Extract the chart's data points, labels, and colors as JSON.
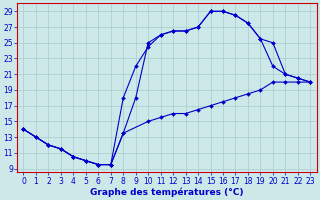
{
  "xlabel": "Graphe des températures (°C)",
  "bg_color": "#cde8e8",
  "line_color": "#0000cc",
  "grid_color": "#aacccc",
  "spine_color": "#cc0000",
  "xlim": [
    -0.5,
    23.5
  ],
  "ylim": [
    8.5,
    30
  ],
  "xticks": [
    0,
    1,
    2,
    3,
    4,
    5,
    6,
    7,
    8,
    9,
    10,
    11,
    12,
    13,
    14,
    15,
    16,
    17,
    18,
    19,
    20,
    21,
    22,
    23
  ],
  "yticks": [
    9,
    11,
    13,
    15,
    17,
    19,
    21,
    23,
    25,
    27,
    29
  ],
  "line1_x": [
    0,
    1,
    2,
    3,
    4,
    5,
    6,
    7,
    8,
    9,
    10,
    11,
    12,
    13,
    14,
    15,
    16,
    17,
    18,
    19,
    20,
    21,
    22,
    23
  ],
  "line1_y": [
    14,
    13,
    12,
    11.5,
    10.5,
    10,
    9.5,
    9.5,
    13.5,
    18,
    25,
    26,
    26.5,
    26.5,
    27,
    29,
    29,
    28.5,
    27.5,
    25.5,
    22,
    21,
    20.5,
    20
  ],
  "line2_x": [
    0,
    1,
    2,
    3,
    4,
    5,
    6,
    7,
    8,
    9,
    10,
    11,
    12,
    13,
    14,
    15,
    16,
    17,
    18,
    19,
    20,
    21,
    22,
    23
  ],
  "line2_y": [
    14,
    13,
    12,
    11.5,
    10.5,
    10,
    9.5,
    9.5,
    18,
    22,
    24.5,
    26,
    26.5,
    26.5,
    27,
    29,
    29,
    28.5,
    27.5,
    25.5,
    25,
    21,
    20.5,
    20
  ],
  "line3_x": [
    0,
    2,
    3,
    4,
    5,
    6,
    7,
    8,
    10,
    11,
    12,
    13,
    14,
    15,
    16,
    17,
    18,
    19,
    20,
    21,
    22,
    23
  ],
  "line3_y": [
    14,
    12,
    11.5,
    10.5,
    10,
    9.5,
    9.5,
    13.5,
    15,
    15.5,
    16,
    16,
    16.5,
    17,
    17.5,
    18,
    18.5,
    19,
    20,
    20,
    20,
    20
  ],
  "tick_fontsize": 5.5,
  "xlabel_fontsize": 6.5,
  "marker": "D",
  "markersize": 2.0,
  "linewidth": 0.8
}
